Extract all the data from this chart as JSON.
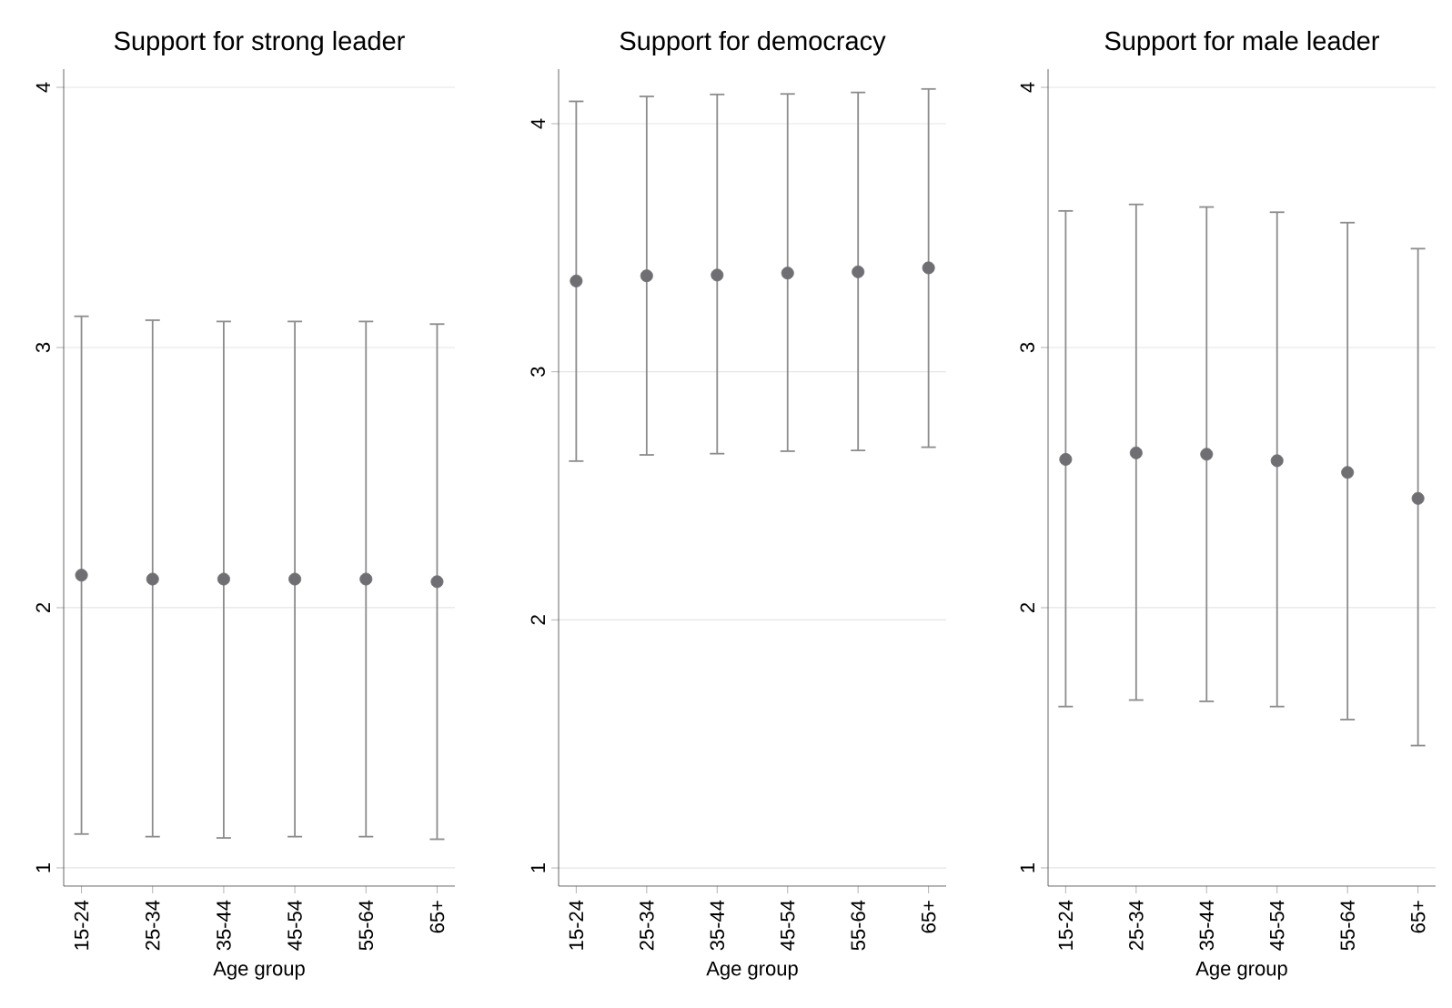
{
  "chart_data": [
    {
      "type": "scatter",
      "title": "Support for strong leader",
      "xlabel": "Age group",
      "categories": [
        "15-24",
        "25-34",
        "35-44",
        "45-54",
        "55-64",
        "65+"
      ],
      "values": [
        2.125,
        2.11,
        2.11,
        2.11,
        2.11,
        2.1
      ],
      "errors": [
        [
          1.13,
          3.12
        ],
        [
          1.12,
          3.105
        ],
        [
          1.115,
          3.1
        ],
        [
          1.12,
          3.1
        ],
        [
          1.12,
          3.1
        ],
        [
          1.11,
          3.09
        ]
      ],
      "color": "#6f6f73",
      "ylim": [
        0.93,
        4.07
      ],
      "yticks": [
        1,
        2,
        3,
        4
      ],
      "grid": "y",
      "marker": "circle"
    },
    {
      "type": "scatter",
      "title": "Support for democracy",
      "xlabel": "Age group",
      "categories": [
        "15-24",
        "25-34",
        "35-44",
        "45-54",
        "55-64",
        "65+"
      ],
      "values": [
        3.366,
        3.387,
        3.39,
        3.398,
        3.403,
        3.419
      ],
      "errors": [
        [
          2.64,
          4.09
        ],
        [
          2.665,
          4.11
        ],
        [
          2.67,
          4.118
        ],
        [
          2.68,
          4.12
        ],
        [
          2.683,
          4.126
        ],
        [
          2.696,
          4.14
        ]
      ],
      "color": "#6f6f73",
      "ylim": [
        0.927,
        4.22
      ],
      "yticks": [
        1,
        2,
        3,
        4
      ],
      "grid": "y",
      "marker": "circle"
    },
    {
      "type": "scatter",
      "title": "Support for male leader",
      "xlabel": "Age group",
      "categories": [
        "15-24",
        "25-34",
        "35-44",
        "45-54",
        "55-64",
        "65+"
      ],
      "values": [
        2.57,
        2.595,
        2.59,
        2.565,
        2.52,
        2.42
      ],
      "errors": [
        [
          1.62,
          3.525
        ],
        [
          1.645,
          3.55
        ],
        [
          1.64,
          3.54
        ],
        [
          1.62,
          3.52
        ],
        [
          1.57,
          3.48
        ],
        [
          1.47,
          3.38
        ]
      ],
      "color": "#6f6f73",
      "ylim": [
        0.93,
        4.07
      ],
      "yticks": [
        1,
        2,
        3,
        4
      ],
      "grid": "y",
      "marker": "circle"
    }
  ]
}
